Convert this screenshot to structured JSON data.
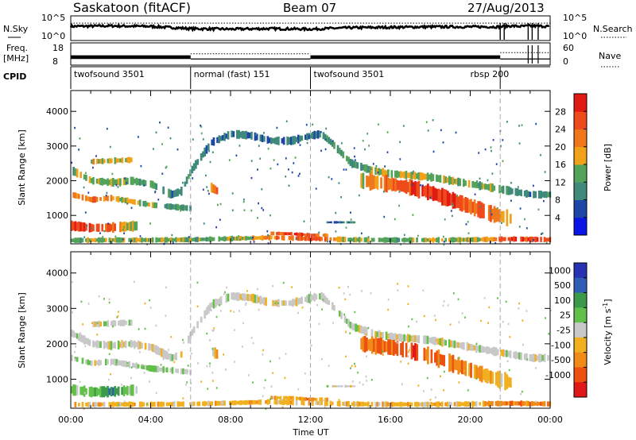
{
  "header": {
    "station": "Saskatoon (fitACF)",
    "beam": "Beam 07",
    "date": "27/Aug/2013"
  },
  "colors": {
    "power_scale": [
      "#0a14e6",
      "#1e46a8",
      "#3f8a7a",
      "#54a35a",
      "#f2a21a",
      "#f0781c",
      "#ee4a1c",
      "#e21a14"
    ],
    "velocity_scale": [
      "#2833b4",
      "#2f5fb4",
      "#3a9a4a",
      "#60c04a",
      "#c8c8c8",
      "#f0b020",
      "#f08a18",
      "#ee5010",
      "#e01818"
    ]
  },
  "chart_data": [
    {
      "type": "line",
      "panel": "sky-noise",
      "left_label": "N.Sky",
      "right_label": "N.Search",
      "left_ticks": [
        "10^5",
        "10^0"
      ],
      "right_ticks": [
        "10^5",
        "10^0"
      ],
      "x": [
        0,
        2,
        4,
        6,
        8,
        10,
        12,
        14,
        16,
        18,
        20,
        21.5,
        22,
        22.5,
        23,
        24
      ],
      "values": [
        2.9,
        3.0,
        2.9,
        2.4,
        2.3,
        2.4,
        2.3,
        2.6,
        2.7,
        2.8,
        2.8,
        2.8,
        3.0,
        2.9,
        3.0,
        2.9
      ],
      "search_noise": [
        3.6,
        3.6,
        3.6,
        3.6,
        3.6,
        3.6,
        3.6,
        3.6,
        3.6,
        3.6,
        3.6,
        3.6,
        3.6,
        3.6,
        3.6,
        3.6
      ],
      "ylim": [
        0,
        5
      ]
    },
    {
      "type": "line",
      "panel": "frequency-nave",
      "left_label_top": "Freq.",
      "left_label_bottom": "[MHz]",
      "right_label": "Nave",
      "left_ticks": [
        "18",
        "8"
      ],
      "right_ticks": [
        "60",
        "0"
      ],
      "frequency_segments": [
        {
          "x": [
            0,
            6
          ],
          "mode": "alternating",
          "low": 10.5,
          "high": 12.5
        },
        {
          "x": [
            6,
            12
          ],
          "mode": "constant",
          "value": 10.5
        },
        {
          "x": [
            12,
            21.5
          ],
          "mode": "alternating",
          "low": 10.5,
          "high": 12.5
        },
        {
          "x": [
            21.5,
            24
          ],
          "mode": "constant",
          "value": 10.5
        }
      ],
      "nave_segments": [
        {
          "x": [
            6,
            12
          ],
          "value": 32
        },
        {
          "x": [
            21.5,
            24
          ],
          "value": 36
        }
      ]
    },
    {
      "type": "table",
      "panel": "cpid",
      "label": "CPID",
      "entries": [
        {
          "start": 0,
          "end": 6,
          "text": "twofsound 3501"
        },
        {
          "start": 6,
          "end": 12,
          "text": "normal (fast) 151"
        },
        {
          "start": 12,
          "end": 21.5,
          "text": "twofsound 3501"
        },
        {
          "start": 21.5,
          "end": 24,
          "text": "rbsp 200",
          "label_at": 20
        }
      ]
    },
    {
      "type": "heatmap",
      "panel": "power",
      "ylabel": "Slant Range [km]",
      "yticks": [
        1000,
        2000,
        3000,
        4000
      ],
      "ylim": [
        180,
        4600
      ],
      "xlim": [
        0,
        24
      ],
      "colorbar_label": "Power [dB]",
      "colorbar_ticks": [
        4,
        8,
        12,
        16,
        20,
        24,
        28
      ],
      "clim": [
        0,
        32
      ],
      "bands": [
        {
          "x": [
            0,
            1,
            2,
            2.8,
            3.3
          ],
          "y": [
            700,
            640,
            650,
            680,
            700
          ],
          "thick": 250,
          "values": [
            28,
            28,
            24,
            18,
            12
          ]
        },
        {
          "x": [
            0,
            1,
            2,
            3,
            4,
            5,
            6
          ],
          "y": [
            1600,
            1450,
            1500,
            1400,
            1300,
            1250,
            1200
          ],
          "thick": 150,
          "values": [
            20,
            22,
            20,
            16,
            14,
            12,
            10
          ]
        },
        {
          "x": [
            0,
            1,
            2,
            3,
            4,
            5,
            5.5,
            6,
            7,
            8,
            9,
            10,
            11,
            12,
            12.5,
            13,
            14,
            15,
            16,
            18,
            20,
            21,
            22,
            23,
            24
          ],
          "y": [
            2300,
            2000,
            1950,
            2000,
            1900,
            1600,
            1700,
            2300,
            3100,
            3350,
            3300,
            3150,
            3150,
            3300,
            3350,
            3100,
            2500,
            2300,
            2200,
            2100,
            1900,
            1800,
            1700,
            1600,
            1600
          ],
          "thick": 200,
          "values": [
            14,
            16,
            16,
            14,
            12,
            10,
            12,
            12,
            8,
            8,
            8,
            8,
            8,
            8,
            10,
            12,
            12,
            14,
            16,
            16,
            14,
            14,
            12,
            10,
            10
          ]
        },
        {
          "x": [
            14.5,
            16,
            17,
            18,
            19,
            20,
            21,
            22
          ],
          "y": [
            2000,
            1900,
            1800,
            1650,
            1450,
            1250,
            1050,
            900
          ],
          "thick": 400,
          "values": [
            18,
            24,
            26,
            28,
            28,
            24,
            22,
            18
          ]
        },
        {
          "x": [
            0,
            2,
            4,
            6,
            8,
            10,
            12,
            14,
            16,
            18,
            20,
            22,
            24
          ],
          "y": [
            280,
            290,
            290,
            300,
            330,
            360,
            330,
            300,
            290,
            290,
            300,
            320,
            300
          ],
          "thick": 130,
          "values": [
            14,
            16,
            16,
            14,
            14,
            22,
            26,
            16,
            14,
            16,
            14,
            26,
            26
          ]
        },
        {
          "x": [
            10,
            11,
            11.5,
            12,
            12.8
          ],
          "y": [
            480,
            470,
            450,
            430,
            430
          ],
          "thick": 90,
          "values": [
            24,
            28,
            28,
            24,
            20
          ]
        },
        {
          "x": [
            1,
            3
          ],
          "y": [
            2550,
            2600
          ],
          "thick": 150,
          "values": [
            18,
            16
          ]
        },
        {
          "x": [
            7,
            7.3
          ],
          "y": [
            1800,
            1700
          ],
          "thick": 250,
          "values": [
            20,
            24
          ]
        },
        {
          "x": [
            12.8,
            14.2
          ],
          "y": [
            800,
            800
          ],
          "thick": 60,
          "values": [
            8,
            10
          ]
        }
      ]
    },
    {
      "type": "heatmap",
      "panel": "velocity",
      "ylabel": "Slant Range [km]",
      "yticks": [
        1000,
        2000,
        3000,
        4000
      ],
      "ylim": [
        180,
        4600
      ],
      "xlim": [
        0,
        24
      ],
      "xlabel": "Time UT",
      "xticks": [
        "00:00",
        "04:00",
        "08:00",
        "12:00",
        "16:00",
        "20:00",
        "00:00"
      ],
      "colorbar_label": "Velocity [m s^-1]",
      "colorbar_label_base": "Velocity [m s",
      "colorbar_label_exp": "-1",
      "colorbar_label_tail": "]",
      "colorbar_ticks": [
        "1000",
        "500",
        "100",
        "25",
        "-25",
        "-100",
        "-500",
        "-1000"
      ],
      "bands": [
        {
          "x": [
            0,
            1,
            2,
            2.8,
            3.3
          ],
          "y": [
            700,
            640,
            650,
            680,
            700
          ],
          "thick": 250,
          "values": [
            3,
            3,
            2,
            3,
            4
          ]
        },
        {
          "x": [
            0,
            1,
            2,
            3,
            4,
            5,
            6
          ],
          "y": [
            1600,
            1450,
            1500,
            1400,
            1300,
            1250,
            1200
          ],
          "thick": 150,
          "values": [
            4,
            4,
            4,
            4,
            3,
            4,
            4
          ]
        },
        {
          "x": [
            0,
            1,
            2,
            3,
            4,
            5,
            5.5,
            6,
            7,
            8,
            9,
            10,
            11,
            12,
            12.5,
            13,
            14,
            15,
            16,
            18,
            20,
            21,
            22,
            23,
            24
          ],
          "y": [
            2300,
            2000,
            1950,
            2000,
            1900,
            1600,
            1700,
            2300,
            3100,
            3350,
            3300,
            3150,
            3150,
            3300,
            3350,
            3100,
            2500,
            2300,
            2200,
            2100,
            1900,
            1800,
            1700,
            1600,
            1600
          ],
          "thick": 200,
          "values": [
            4,
            4,
            4,
            4,
            4,
            4,
            4,
            4,
            4,
            4,
            4,
            4,
            4,
            4,
            4,
            4,
            4,
            4,
            4,
            4,
            4,
            4,
            4,
            4,
            4
          ]
        },
        {
          "x": [
            14.5,
            16,
            17,
            18,
            19,
            20,
            21,
            22
          ],
          "y": [
            2000,
            1900,
            1800,
            1650,
            1450,
            1250,
            1050,
            900
          ],
          "thick": 400,
          "values": [
            6,
            7,
            7,
            7,
            6,
            6,
            5,
            5
          ]
        },
        {
          "x": [
            0,
            2,
            4,
            6,
            8,
            10,
            12,
            14,
            16,
            18,
            20,
            22,
            24
          ],
          "y": [
            280,
            290,
            290,
            300,
            330,
            360,
            330,
            300,
            290,
            290,
            300,
            320,
            300
          ],
          "thick": 130,
          "values": [
            5,
            5,
            5,
            5,
            5,
            5,
            5,
            5,
            5,
            5,
            5,
            6,
            6
          ]
        },
        {
          "x": [
            10,
            11,
            11.5,
            12,
            12.8
          ],
          "y": [
            480,
            470,
            450,
            430,
            430
          ],
          "thick": 90,
          "values": [
            5,
            5,
            6,
            6,
            5
          ]
        },
        {
          "x": [
            1,
            3
          ],
          "y": [
            2550,
            2600
          ],
          "thick": 150,
          "values": [
            4,
            4
          ]
        },
        {
          "x": [
            7,
            7.3
          ],
          "y": [
            1800,
            1700
          ],
          "thick": 250,
          "values": [
            3,
            6
          ]
        },
        {
          "x": [
            12.8,
            14.2
          ],
          "y": [
            800,
            800
          ],
          "thick": 60,
          "values": [
            4,
            4
          ]
        }
      ]
    }
  ]
}
